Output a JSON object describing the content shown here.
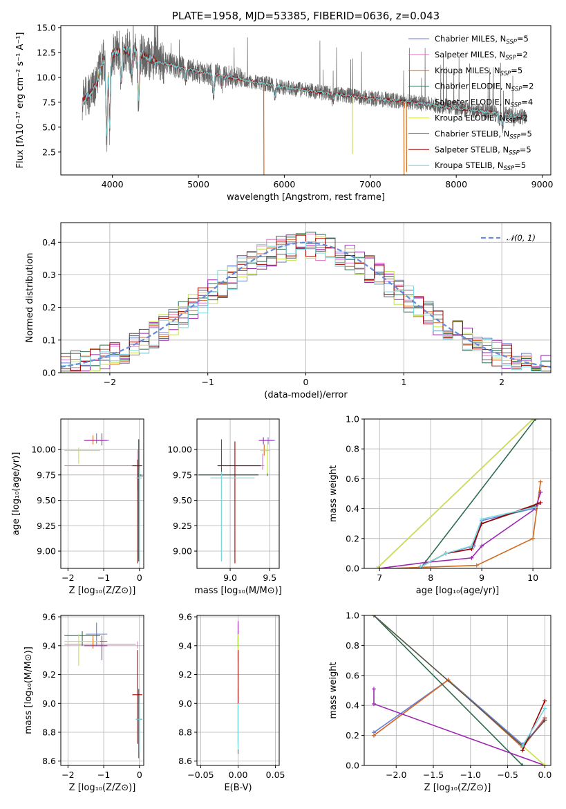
{
  "colors": {
    "Chabrier MILES": "#6a7fdb",
    "Salpeter MILES": "#e377c2",
    "Kroupa MILES": "#d2691e",
    "Chabrier ELODIE": "#2e6b4e",
    "Salpeter ELODIE": "#9b27b0",
    "Kroupa ELODIE": "#c6e34a",
    "Chabrier STELIB": "#555555",
    "Salpeter STELIB": "#a00000",
    "Kroupa STELIB": "#79d8df",
    "normal": "#6a8bd8"
  },
  "chart_data": [
    {
      "id": "spectrum",
      "type": "line",
      "title": "PLATE=1958, MJD=53385, FIBERID=0636, z=0.043",
      "xlabel": "wavelength [Angstrom, rest frame]",
      "ylabel": "Flux [fλ10⁻¹⁷ erg cm⁻² s⁻¹ A⁻¹]",
      "xlim": [
        3400,
        9100
      ],
      "ylim": [
        0.2,
        15.2
      ],
      "xticks": [
        4000,
        5000,
        6000,
        7000,
        8000,
        9000
      ],
      "yticks": [
        2.5,
        5.0,
        7.5,
        10.0,
        12.5,
        15.0
      ],
      "legend_position": "upper right",
      "legend": [
        {
          "label": "Chabrier MILES, N",
          "n": "5"
        },
        {
          "label": "Salpeter MILES, N",
          "n": "2"
        },
        {
          "label": "Kroupa MILES, N",
          "n": "5"
        },
        {
          "label": "Chabrier ELODIE, N",
          "n": "2"
        },
        {
          "label": "Salpeter ELODIE, N",
          "n": "4"
        },
        {
          "label": "Kroupa ELODIE, N",
          "n": "2"
        },
        {
          "label": "Chabrier STELIB, N",
          "n": "5"
        },
        {
          "label": "Salpeter STELIB, N",
          "n": "5"
        },
        {
          "label": "Kroupa STELIB, N",
          "n": "5"
        }
      ],
      "legend_sub": "SSP",
      "continuum": [
        [
          3650,
          7.5
        ],
        [
          3800,
          9.0
        ],
        [
          3900,
          11.8
        ],
        [
          4100,
          12.8
        ],
        [
          4300,
          12.5
        ],
        [
          4500,
          11.6
        ],
        [
          4800,
          11.0
        ],
        [
          5000,
          10.6
        ],
        [
          5500,
          9.8
        ],
        [
          6000,
          9.0
        ],
        [
          6500,
          8.4
        ],
        [
          7000,
          7.9
        ],
        [
          7500,
          7.5
        ],
        [
          8000,
          6.9
        ],
        [
          8500,
          6.4
        ],
        [
          8800,
          6.0
        ]
      ],
      "absorption_lines": [
        [
          3933,
          4.2
        ],
        [
          3968,
          5.0
        ],
        [
          4102,
          9.6
        ],
        [
          4227,
          10.2
        ],
        [
          4305,
          8.0
        ],
        [
          4861,
          9.6
        ],
        [
          5175,
          8.6
        ],
        [
          5270,
          9.0
        ],
        [
          5890,
          8.0
        ],
        [
          6563,
          7.8
        ],
        [
          8500,
          5.4
        ],
        [
          8542,
          5.2
        ],
        [
          8662,
          5.6
        ]
      ],
      "artifacts": [
        [
          5760,
          0.2
        ],
        [
          6790,
          2.3
        ],
        [
          7390,
          0.2
        ],
        [
          7420,
          0.5
        ]
      ],
      "noisy_series": "Chabrier STELIB"
    },
    {
      "id": "residuals",
      "type": "line",
      "xlabel": "(data-model)/error",
      "ylabel": "Normed distribution",
      "xlim": [
        -2.5,
        2.5
      ],
      "ylim": [
        0,
        0.46
      ],
      "xticks": [
        -2,
        -1,
        0,
        1,
        2
      ],
      "yticks": [
        0.0,
        0.1,
        0.2,
        0.3,
        0.4
      ],
      "grid": true,
      "legend": "𝒩(0, 1)",
      "legend_position": "upper right",
      "bin_width": 0.1,
      "reference": "normal pdf, mean 0, sigma 1"
    },
    {
      "id": "age_vs_Z",
      "type": "scatter",
      "xlabel": "Z [log₁₀(Z/Z⊙)]",
      "ylabel": "age  [log₁₀(age/yr)]",
      "xlim": [
        -2.2,
        0.12
      ],
      "ylim": [
        8.83,
        10.3
      ],
      "xticks": [
        -2,
        -1,
        0
      ],
      "yticks": [
        9.0,
        9.25,
        9.5,
        9.75,
        10.0
      ],
      "grid": true,
      "points": [
        {
          "s": "Chabrier MILES",
          "x": -1.2,
          "y": 10.09,
          "xl": -1.55,
          "xh": -0.85,
          "yl": 10.06,
          "yh": 10.16
        },
        {
          "s": "Salpeter MILES",
          "x": -0.05,
          "y": 9.84,
          "xl": -2.1,
          "xh": -0.02,
          "yl": 9.6,
          "yh": 10.0
        },
        {
          "s": "Kroupa MILES",
          "x": -1.3,
          "y": 10.09,
          "xl": -1.5,
          "xh": -1.0,
          "yl": 10.05,
          "yh": 10.14
        },
        {
          "s": "Chabrier ELODIE",
          "x": -0.02,
          "y": 9.75,
          "xl": -0.03,
          "xh": 0.05,
          "yl": 8.9,
          "yh": 10.1
        },
        {
          "s": "Salpeter ELODIE",
          "x": -1.05,
          "y": 10.09,
          "xl": -1.55,
          "xh": -0.9,
          "yl": 10.04,
          "yh": 10.16
        },
        {
          "s": "Kroupa ELODIE",
          "x": -1.7,
          "y": 9.99,
          "xl": -2.1,
          "xh": -1.1,
          "yl": 9.86,
          "yh": 10.02
        },
        {
          "s": "Chabrier STELIB",
          "x": -0.02,
          "y": 9.74,
          "xl": -0.02,
          "xh": 0.1,
          "yl": 8.9,
          "yh": 10.1
        },
        {
          "s": "Salpeter STELIB",
          "x": -0.05,
          "y": 9.84,
          "xl": -0.2,
          "xh": 0.08,
          "yl": 8.88,
          "yh": 9.9
        },
        {
          "s": "Kroupa STELIB",
          "x": 0.0,
          "y": 9.72,
          "xl": -0.1,
          "xh": 0.08,
          "yl": 8.9,
          "yh": 9.8
        }
      ]
    },
    {
      "id": "age_vs_mass",
      "type": "scatter",
      "xlabel": "mass [log₁₀(M/M⊙)]",
      "xlim": [
        8.58,
        9.62
      ],
      "ylim": [
        8.83,
        10.3
      ],
      "xticks": [
        9.0,
        9.5
      ],
      "yticks": [
        9.0,
        9.25,
        9.5,
        9.75,
        10.0
      ],
      "grid": true,
      "points": [
        {
          "s": "Chabrier MILES",
          "x": 9.48,
          "y": 10.09,
          "xl": 9.38,
          "xh": 9.57,
          "yl": 10.05,
          "yh": 10.12
        },
        {
          "s": "Salpeter MILES",
          "x": 9.41,
          "y": 9.84,
          "xl": 9.05,
          "xh": 9.43,
          "yl": 9.8,
          "yh": 9.96
        },
        {
          "s": "Kroupa MILES",
          "x": 9.43,
          "y": 9.99,
          "xl": 9.4,
          "xh": 9.47,
          "yl": 9.94,
          "yh": 10.05
        },
        {
          "s": "Chabrier ELODIE",
          "x": 9.47,
          "y": 9.75,
          "xl": 8.6,
          "xh": 9.36,
          "yl": 9.74,
          "yh": 9.77
        },
        {
          "s": "Salpeter ELODIE",
          "x": 9.42,
          "y": 10.09,
          "xl": 9.36,
          "xh": 9.55,
          "yl": 10.05,
          "yh": 10.12
        },
        {
          "s": "Kroupa ELODIE",
          "x": 9.47,
          "y": 9.99,
          "xl": 9.38,
          "xh": 9.5,
          "yl": 9.76,
          "yh": 10.05
        },
        {
          "s": "Chabrier STELIB",
          "x": 8.89,
          "y": 9.75,
          "xl": 8.6,
          "xh": 9.35,
          "yl": 8.9,
          "yh": 10.1
        },
        {
          "s": "Salpeter STELIB",
          "x": 9.06,
          "y": 9.84,
          "xl": 8.84,
          "xh": 9.39,
          "yl": 8.88,
          "yh": 10.08
        },
        {
          "s": "Kroupa STELIB",
          "x": 8.89,
          "y": 9.72,
          "xl": 8.75,
          "xh": 9.31,
          "yl": 8.9,
          "yh": 9.78
        }
      ]
    },
    {
      "id": "weight_vs_age",
      "type": "line",
      "xlabel": "age  [log₁₀(age/yr)]",
      "ylabel": "mass weight",
      "xlim": [
        6.7,
        10.35
      ],
      "ylim": [
        0,
        1.0
      ],
      "xticks": [
        7,
        8,
        9,
        10
      ],
      "yticks": [
        0.0,
        0.2,
        0.4,
        0.6,
        0.8,
        1.0
      ],
      "grid": true,
      "series": [
        {
          "s": "Chabrier MILES",
          "pts": [
            [
              7.8,
              0.01
            ],
            [
              8.3,
              0.1
            ],
            [
              8.85,
              0.15
            ],
            [
              9.0,
              0.32
            ],
            [
              10.0,
              0.4
            ],
            [
              10.1,
              0.43
            ]
          ]
        },
        {
          "s": "Salpeter MILES",
          "pts": [
            [
              6.95,
              0.0
            ],
            [
              10.0,
              1.0
            ]
          ]
        },
        {
          "s": "Kroupa MILES",
          "pts": [
            [
              7.2,
              0.0
            ],
            [
              8.9,
              0.02
            ],
            [
              10.0,
              0.2
            ],
            [
              10.15,
              0.58
            ]
          ]
        },
        {
          "s": "Chabrier ELODIE",
          "pts": [
            [
              7.8,
              0.0
            ],
            [
              10.05,
              1.0
            ]
          ]
        },
        {
          "s": "Salpeter ELODIE",
          "pts": [
            [
              7.0,
              0.0
            ],
            [
              7.9,
              0.04
            ],
            [
              8.8,
              0.07
            ],
            [
              9.0,
              0.15
            ],
            [
              10.05,
              0.4
            ],
            [
              10.15,
              0.51
            ]
          ]
        },
        {
          "s": "Kroupa ELODIE",
          "pts": [
            [
              6.95,
              0.0
            ],
            [
              10.0,
              1.0
            ]
          ]
        },
        {
          "s": "Chabrier STELIB",
          "pts": [
            [
              7.8,
              0.01
            ],
            [
              8.3,
              0.1
            ],
            [
              8.8,
              0.13
            ],
            [
              9.0,
              0.3
            ],
            [
              10.05,
              0.42
            ]
          ]
        },
        {
          "s": "Salpeter STELIB",
          "pts": [
            [
              7.8,
              0.01
            ],
            [
              8.3,
              0.1
            ],
            [
              8.8,
              0.13
            ],
            [
              9.0,
              0.3
            ],
            [
              10.15,
              0.44
            ]
          ]
        },
        {
          "s": "Kroupa STELIB",
          "pts": [
            [
              7.8,
              0.01
            ],
            [
              8.3,
              0.1
            ],
            [
              8.8,
              0.15
            ],
            [
              9.0,
              0.33
            ],
            [
              10.05,
              0.41
            ]
          ]
        }
      ]
    },
    {
      "id": "mass_vs_Z",
      "type": "scatter",
      "xlabel": "Z [log₁₀(Z/Z⊙)]",
      "ylabel": "mass [log₁₀(M/M⊙)]",
      "xlim": [
        -2.2,
        0.12
      ],
      "ylim": [
        8.57,
        9.61
      ],
      "xticks": [
        -2,
        -1,
        0
      ],
      "yticks": [
        8.6,
        8.8,
        9.0,
        9.2,
        9.4,
        9.6
      ],
      "grid": true,
      "points": [
        {
          "s": "Chabrier MILES",
          "x": -1.2,
          "y": 9.48,
          "xl": -1.5,
          "xh": -0.9,
          "yl": 9.4,
          "yh": 9.56
        },
        {
          "s": "Salpeter MILES",
          "x": -0.05,
          "y": 9.41,
          "xl": -2.1,
          "xh": -0.1,
          "yl": 9.38,
          "yh": 9.43
        },
        {
          "s": "Kroupa MILES",
          "x": -1.3,
          "y": 9.43,
          "xl": -1.5,
          "xh": -0.9,
          "yl": 9.38,
          "yh": 9.47
        },
        {
          "s": "Chabrier ELODIE",
          "x": -1.6,
          "y": 9.47,
          "xl": -2.1,
          "xh": -1.1,
          "yl": 9.4,
          "yh": 9.5
        },
        {
          "s": "Salpeter ELODIE",
          "x": -1.05,
          "y": 9.4,
          "xl": -1.55,
          "xh": -0.9,
          "yl": 9.3,
          "yh": 9.47
        },
        {
          "s": "Kroupa ELODIE",
          "x": -1.7,
          "y": 9.43,
          "xl": -2.1,
          "xh": -1.1,
          "yl": 9.26,
          "yh": 9.48
        },
        {
          "s": "Chabrier STELIB",
          "x": -0.02,
          "y": 8.89,
          "xl": -0.1,
          "xh": 0.08,
          "yl": 8.62,
          "yh": 9.1
        },
        {
          "s": "Salpeter STELIB",
          "x": -0.05,
          "y": 9.06,
          "xl": -0.2,
          "xh": 0.08,
          "yl": 8.72,
          "yh": 9.37
        },
        {
          "s": "Kroupa STELIB",
          "x": 0.0,
          "y": 8.89,
          "xl": -0.1,
          "xh": 0.08,
          "yl": 8.66,
          "yh": 9.0
        }
      ]
    },
    {
      "id": "mass_vs_EBV",
      "type": "scatter",
      "xlabel": "E(B-V)",
      "xlim": [
        -0.055,
        0.055
      ],
      "ylim": [
        8.57,
        9.61
      ],
      "xticks": [
        -0.05,
        0.0,
        0.05
      ],
      "xticklabels": [
        "−0.05",
        "0.00",
        "0.05"
      ],
      "yticks": [
        8.6,
        8.8,
        9.0,
        9.2,
        9.4,
        9.6
      ],
      "grid": true,
      "points": [
        {
          "s": "Chabrier MILES",
          "x": 0.0,
          "y": 9.48,
          "yl": 9.4,
          "yh": 9.55
        },
        {
          "s": "Salpeter MILES",
          "x": 0.0,
          "y": 9.41,
          "yl": 9.38,
          "yh": 9.43
        },
        {
          "s": "Kroupa MILES",
          "x": 0.0,
          "y": 9.43,
          "yl": 9.38,
          "yh": 9.47
        },
        {
          "s": "Chabrier ELODIE",
          "x": 0.0,
          "y": 9.47,
          "yl": 9.4,
          "yh": 9.5
        },
        {
          "s": "Salpeter ELODIE",
          "x": 0.0,
          "y": 9.4,
          "yl": 9.3,
          "yh": 9.57
        },
        {
          "s": "Kroupa ELODIE",
          "x": 0.0,
          "y": 9.43,
          "yl": 9.26,
          "yh": 9.48
        },
        {
          "s": "Chabrier STELIB",
          "x": 0.0,
          "y": 8.89,
          "yl": 8.65,
          "yh": 9.1
        },
        {
          "s": "Salpeter STELIB",
          "x": 0.0,
          "y": 9.06,
          "yl": 8.72,
          "yh": 9.37
        },
        {
          "s": "Kroupa STELIB",
          "x": 0.0,
          "y": 8.89,
          "yl": 8.68,
          "yh": 9.0
        }
      ]
    },
    {
      "id": "weight_vs_Z",
      "type": "line",
      "xlabel": "Z [log₁₀(Z/Z⊙)]",
      "ylabel": "mass weight",
      "xlim": [
        -2.43,
        0.08
      ],
      "ylim": [
        0,
        1.0
      ],
      "xticks": [
        -2.0,
        -1.5,
        -1.0,
        -0.5,
        0.0
      ],
      "yticks": [
        0.0,
        0.2,
        0.4,
        0.6,
        0.8,
        1.0
      ],
      "grid": true,
      "series": [
        {
          "s": "Chabrier MILES",
          "pts": [
            [
              -2.3,
              0.22
            ],
            [
              -1.3,
              0.57
            ],
            [
              -0.3,
              0.14
            ],
            [
              0.0,
              0.3
            ]
          ]
        },
        {
          "s": "Salpeter MILES",
          "pts": [
            [
              -2.3,
              0.2
            ],
            [
              -1.3,
              0.57
            ],
            [
              -0.3,
              0.12
            ],
            [
              0.0,
              0.32
            ]
          ]
        },
        {
          "s": "Kroupa MILES",
          "pts": [
            [
              -2.3,
              0.2
            ],
            [
              -1.3,
              0.57
            ],
            [
              -0.3,
              0.12
            ],
            [
              0.0,
              0.31
            ]
          ]
        },
        {
          "s": "Chabrier ELODIE",
          "pts": [
            [
              -2.3,
              1.0
            ],
            [
              -0.3,
              0.0
            ]
          ]
        },
        {
          "s": "Salpeter ELODIE",
          "pts": [
            [
              -2.3,
              0.51
            ],
            [
              -2.3,
              0.41
            ],
            [
              0.0,
              0.0
            ]
          ]
        },
        {
          "s": "Kroupa ELODIE",
          "pts": [
            [
              -2.3,
              1.0
            ],
            [
              0.0,
              0.0
            ]
          ]
        },
        {
          "s": "Chabrier STELIB",
          "pts": [
            [
              -2.3,
              1.0
            ],
            [
              -0.3,
              0.13
            ],
            [
              0.0,
              0.3
            ]
          ]
        },
        {
          "s": "Salpeter STELIB",
          "pts": [
            [
              -0.3,
              0.1
            ],
            [
              0.0,
              0.43
            ]
          ]
        },
        {
          "s": "Kroupa STELIB",
          "pts": [
            [
              -0.3,
              0.13
            ],
            [
              0.0,
              0.38
            ]
          ]
        }
      ]
    }
  ]
}
